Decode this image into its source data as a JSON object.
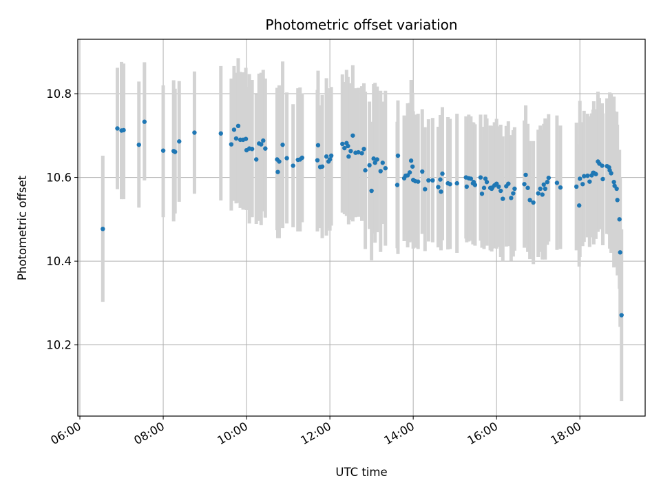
{
  "chart_data": {
    "type": "scatter",
    "title": "Photometric offset variation",
    "xlabel": "UTC time",
    "ylabel": "Photometric offset",
    "xlim": [
      "05:57",
      "19:34"
    ],
    "ylim": [
      10.03,
      10.93
    ],
    "xticks": [
      "06:00",
      "08:00",
      "10:00",
      "12:00",
      "14:00",
      "16:00",
      "18:00"
    ],
    "yticks": [
      "10.2",
      "10.4",
      "10.6",
      "10.8"
    ],
    "grid": true,
    "colors": {
      "point": "#1f77b4",
      "errorbar": "#d3d3d3",
      "grid": "#b0b0b0"
    },
    "series": [
      {
        "x": [
          "06:33",
          "06:54",
          "07:00",
          "07:03",
          "07:25",
          "07:33",
          "08:00",
          "08:15",
          "08:17",
          "08:23",
          "08:45",
          "09:23",
          "09:38",
          "09:42",
          "09:45",
          "09:48",
          "09:51",
          "09:55",
          "09:59",
          "10:00",
          "10:04",
          "10:08",
          "10:14",
          "10:18",
          "10:21",
          "10:24",
          "10:27",
          "10:44",
          "10:45",
          "10:47",
          "10:52",
          "10:58",
          "11:07",
          "11:14",
          "11:17",
          "11:20",
          "11:42",
          "11:43",
          "11:46",
          "11:49",
          "11:55",
          "11:58",
          "12:00",
          "12:02",
          "12:18",
          "12:21",
          "12:24",
          "12:26",
          "12:27",
          "12:30",
          "12:33",
          "12:37",
          "12:41",
          "12:46",
          "12:49",
          "12:51",
          "12:57",
          "13:00",
          "13:03",
          "13:05",
          "13:08",
          "13:13",
          "13:16",
          "13:20",
          "13:37",
          "13:38",
          "13:47",
          "13:49",
          "13:52",
          "13:55",
          "13:57",
          "13:59",
          "14:00",
          "14:03",
          "14:07",
          "14:13",
          "14:17",
          "14:22",
          "14:28",
          "14:36",
          "14:39",
          "14:40",
          "14:42",
          "14:50",
          "14:53",
          "15:03",
          "15:16",
          "15:17",
          "15:20",
          "15:23",
          "15:26",
          "15:27",
          "15:29",
          "15:37",
          "15:39",
          "15:42",
          "15:44",
          "15:46",
          "15:51",
          "15:53",
          "15:54",
          "15:57",
          "16:00",
          "16:03",
          "16:06",
          "16:09",
          "16:14",
          "16:17",
          "16:21",
          "16:24",
          "16:26",
          "16:40",
          "16:42",
          "16:45",
          "16:48",
          "16:53",
          "17:00",
          "17:03",
          "17:06",
          "17:08",
          "17:10",
          "17:13",
          "17:15",
          "17:27",
          "17:32",
          "17:55",
          "17:59",
          "18:00",
          "18:04",
          "18:06",
          "18:11",
          "18:14",
          "18:17",
          "18:19",
          "18:20",
          "18:23",
          "18:26",
          "18:28",
          "18:32",
          "18:33",
          "18:39",
          "18:42",
          "18:43",
          "18:45",
          "18:49",
          "18:50",
          "18:53",
          "18:54",
          "18:57",
          "18:58",
          "19:00"
        ],
        "y": [
          10.477,
          10.717,
          10.712,
          10.713,
          10.678,
          10.733,
          10.664,
          10.663,
          10.661,
          10.686,
          10.707,
          10.705,
          10.679,
          10.714,
          10.693,
          10.723,
          10.69,
          10.69,
          10.692,
          10.665,
          10.669,
          10.668,
          10.643,
          10.681,
          10.679,
          10.688,
          10.669,
          10.643,
          10.613,
          10.638,
          10.678,
          10.646,
          10.628,
          10.642,
          10.643,
          10.647,
          10.641,
          10.677,
          10.625,
          10.626,
          10.65,
          10.638,
          10.643,
          10.652,
          10.68,
          10.67,
          10.682,
          10.675,
          10.65,
          10.663,
          10.7,
          10.659,
          10.66,
          10.658,
          10.668,
          10.617,
          10.629,
          10.568,
          10.645,
          10.635,
          10.643,
          10.615,
          10.635,
          10.622,
          10.582,
          10.652,
          10.598,
          10.604,
          10.605,
          10.612,
          10.64,
          10.626,
          10.594,
          10.591,
          10.59,
          10.614,
          10.572,
          10.593,
          10.593,
          10.577,
          10.595,
          10.566,
          10.609,
          10.586,
          10.584,
          10.586,
          10.6,
          10.578,
          10.598,
          10.597,
          10.586,
          10.589,
          10.582,
          10.6,
          10.561,
          10.575,
          10.597,
          10.589,
          10.575,
          10.573,
          10.576,
          10.581,
          10.585,
          10.578,
          10.568,
          10.549,
          10.579,
          10.585,
          10.551,
          10.562,
          10.573,
          10.584,
          10.606,
          10.575,
          10.546,
          10.54,
          10.562,
          10.573,
          10.559,
          10.583,
          10.573,
          10.589,
          10.599,
          10.587,
          10.576,
          10.578,
          10.533,
          10.597,
          10.584,
          10.603,
          10.604,
          10.59,
          10.605,
          10.611,
          10.611,
          10.608,
          10.638,
          10.633,
          10.628,
          10.596,
          10.627,
          10.624,
          10.617,
          10.61,
          10.589,
          10.58,
          10.573,
          10.546,
          10.5,
          10.421,
          10.271
        ],
        "err_low": [
          10.303,
          10.572,
          10.548,
          10.548,
          10.528,
          10.593,
          10.505,
          10.495,
          10.514,
          10.542,
          10.561,
          10.545,
          10.521,
          10.544,
          10.538,
          10.539,
          10.527,
          10.523,
          10.524,
          10.522,
          10.49,
          10.505,
          10.489,
          10.496,
          10.486,
          10.519,
          10.504,
          10.474,
          10.455,
          10.455,
          10.479,
          10.49,
          10.481,
          10.471,
          10.471,
          10.493,
          10.471,
          10.499,
          10.479,
          10.455,
          10.461,
          10.48,
          10.473,
          10.485,
          10.516,
          10.512,
          10.508,
          10.512,
          10.488,
          10.499,
          10.495,
          10.505,
          10.506,
          10.496,
          10.511,
          10.429,
          10.477,
          10.402,
          10.466,
          10.444,
          10.469,
          10.422,
          10.489,
          10.437,
          10.431,
          10.417,
          10.448,
          10.466,
          10.433,
          10.445,
          10.448,
          10.45,
          10.43,
          10.432,
          10.429,
          10.465,
          10.424,
          10.447,
          10.445,
          10.433,
          10.441,
          10.426,
          10.45,
          10.428,
          10.429,
          10.42,
          10.454,
          10.445,
          10.447,
          10.449,
          10.44,
          10.448,
          10.437,
          10.449,
          10.432,
          10.429,
          10.444,
          10.437,
          10.426,
          10.423,
          10.43,
          10.431,
          10.43,
          10.434,
          10.41,
          10.4,
          10.435,
          10.436,
          10.401,
          10.411,
          10.425,
          10.432,
          10.44,
          10.422,
          10.405,
          10.393,
          10.41,
          10.422,
          10.404,
          10.438,
          10.404,
          10.439,
          10.447,
          10.427,
          10.429,
          10.426,
          10.387,
          10.41,
          10.436,
          10.446,
          10.457,
          10.434,
          10.457,
          10.46,
          10.44,
          10.453,
          10.47,
          10.476,
          10.479,
          10.438,
          10.465,
          10.464,
          10.43,
          10.42,
          10.385,
          10.403,
          10.389,
          10.366,
          10.334,
          10.243,
          10.066
        ],
        "err_high": [
          10.652,
          10.862,
          10.876,
          10.872,
          10.829,
          10.875,
          10.82,
          10.832,
          10.812,
          10.83,
          10.853,
          10.866,
          10.836,
          10.866,
          10.85,
          10.885,
          10.852,
          10.851,
          10.862,
          10.816,
          10.847,
          10.833,
          10.799,
          10.848,
          10.85,
          10.857,
          10.836,
          10.814,
          10.772,
          10.82,
          10.877,
          10.803,
          10.775,
          10.813,
          10.815,
          10.801,
          10.809,
          10.855,
          10.772,
          10.797,
          10.837,
          10.796,
          10.813,
          10.816,
          10.846,
          10.828,
          10.857,
          10.84,
          10.814,
          10.825,
          10.868,
          10.813,
          10.814,
          10.818,
          10.825,
          10.805,
          10.781,
          10.733,
          10.823,
          10.826,
          10.817,
          10.807,
          10.781,
          10.807,
          10.733,
          10.784,
          10.748,
          10.742,
          10.777,
          10.778,
          10.833,
          10.802,
          10.758,
          10.75,
          10.752,
          10.763,
          10.72,
          10.739,
          10.742,
          10.721,
          10.749,
          10.706,
          10.768,
          10.744,
          10.74,
          10.752,
          10.746,
          10.711,
          10.75,
          10.746,
          10.732,
          10.731,
          10.727,
          10.75,
          10.69,
          10.721,
          10.75,
          10.741,
          10.724,
          10.723,
          10.723,
          10.732,
          10.74,
          10.722,
          10.726,
          10.698,
          10.723,
          10.734,
          10.701,
          10.713,
          10.72,
          10.736,
          10.772,
          10.728,
          10.687,
          10.687,
          10.714,
          10.724,
          10.714,
          10.728,
          10.741,
          10.738,
          10.751,
          10.748,
          10.724,
          10.731,
          10.679,
          10.783,
          10.732,
          10.759,
          10.752,
          10.746,
          10.753,
          10.762,
          10.782,
          10.763,
          10.805,
          10.79,
          10.777,
          10.753,
          10.789,
          10.784,
          10.803,
          10.8,
          10.793,
          10.758,
          10.757,
          10.726,
          10.666,
          10.6,
          10.476
        ]
      }
    ]
  }
}
